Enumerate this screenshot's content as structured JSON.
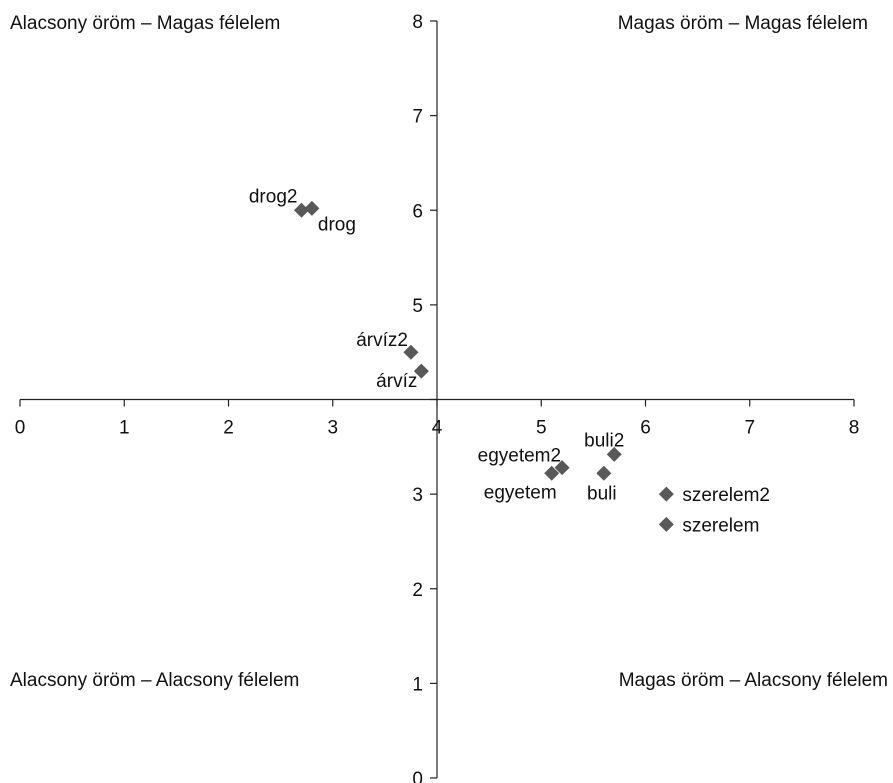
{
  "chart_data": {
    "type": "scatter",
    "title": "",
    "xlabel": "",
    "ylabel": "",
    "xlim": [
      0,
      8
    ],
    "ylim": [
      0,
      8
    ],
    "axes_cross": {
      "x": 4,
      "y": 4
    },
    "x_ticks": [
      "0",
      "1",
      "2",
      "3",
      "4",
      "5",
      "6",
      "7",
      "8"
    ],
    "y_ticks": [
      "0",
      "1",
      "2",
      "3",
      "4",
      "5",
      "6",
      "7",
      "8"
    ],
    "grid": false,
    "marker_color": "#595959",
    "points": [
      {
        "label": "drog2",
        "x": 2.7,
        "y": 6.0
      },
      {
        "label": "drog",
        "x": 2.8,
        "y": 6.02
      },
      {
        "label": "árvíz2",
        "x": 3.75,
        "y": 4.5
      },
      {
        "label": "árvíz",
        "x": 3.85,
        "y": 4.3
      },
      {
        "label": "egyetem2",
        "x": 5.2,
        "y": 3.28
      },
      {
        "label": "egyetem",
        "x": 5.1,
        "y": 3.22
      },
      {
        "label": "buli2",
        "x": 5.7,
        "y": 3.42
      },
      {
        "label": "buli",
        "x": 5.6,
        "y": 3.22
      },
      {
        "label": "szerelem2",
        "x": 6.2,
        "y": 3.0
      },
      {
        "label": "szerelem",
        "x": 6.2,
        "y": 2.68
      }
    ],
    "quadrant_labels": {
      "top_left": "Alacsony öröm – Magas félelem",
      "top_right": "Magas öröm – Magas félelem",
      "bottom_left": "Alacsony öröm – Alacsony félelem",
      "bottom_right": "Magas öröm – Alacsony félelem"
    }
  }
}
